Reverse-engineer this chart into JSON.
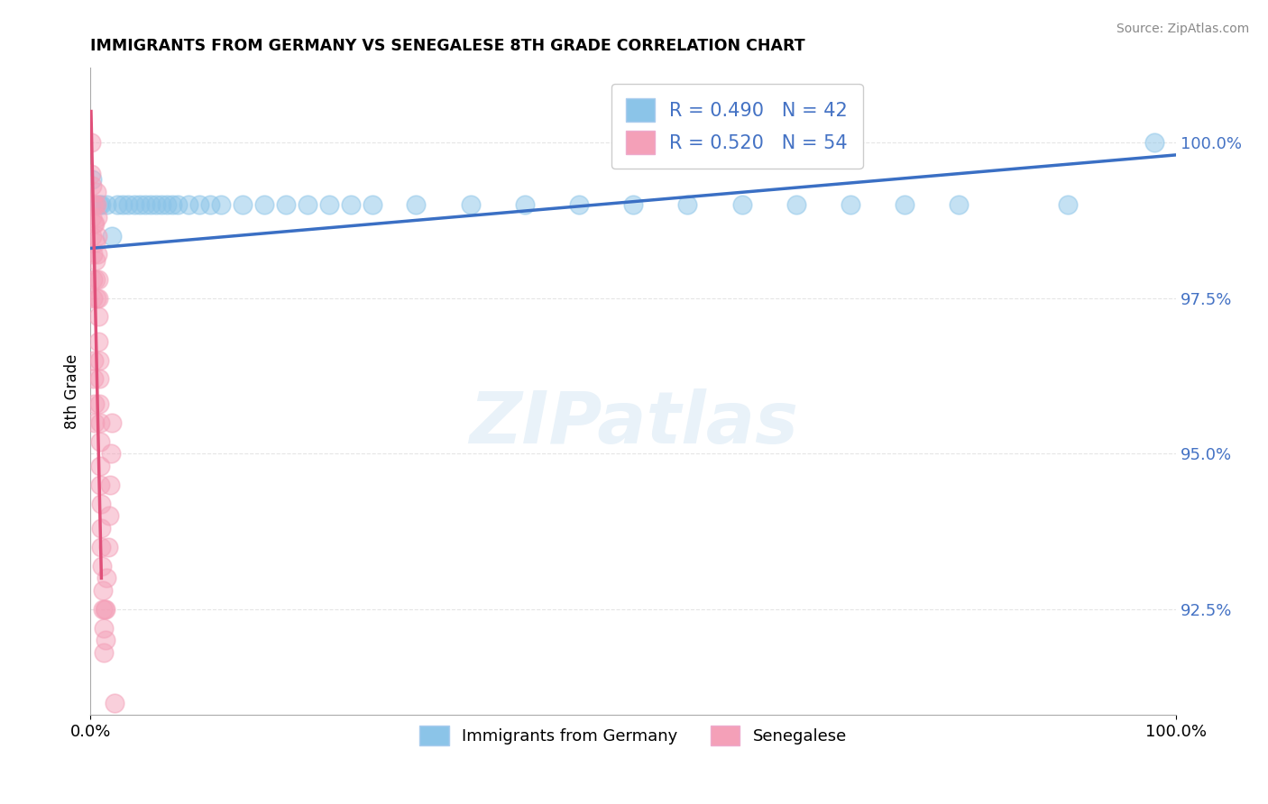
{
  "title": "IMMIGRANTS FROM GERMANY VS SENEGALESE 8TH GRADE CORRELATION CHART",
  "source": "Source: ZipAtlas.com",
  "xlabel": "",
  "ylabel": "8th Grade",
  "xlim": [
    0,
    100
  ],
  "ylim": [
    90.8,
    101.2
  ],
  "yticks": [
    92.5,
    95.0,
    97.5,
    100.0
  ],
  "ytick_labels": [
    "92.5%",
    "95.0%",
    "97.5%",
    "100.0%"
  ],
  "xticks": [
    0,
    100
  ],
  "xtick_labels": [
    "0.0%",
    "100.0%"
  ],
  "blue_R": 0.49,
  "blue_N": 42,
  "pink_R": 0.52,
  "pink_N": 54,
  "blue_color": "#8BC4E8",
  "pink_color": "#F4A0B8",
  "blue_line_color": "#3A6FC4",
  "pink_line_color": "#E0507A",
  "legend_label_blue": "Immigrants from Germany",
  "legend_label_pink": "Senegalese",
  "blue_x": [
    0.1,
    0.5,
    0.8,
    1.0,
    1.5,
    2.0,
    2.5,
    3.0,
    3.5,
    4.0,
    4.5,
    5.0,
    5.5,
    6.0,
    6.5,
    7.0,
    7.5,
    8.0,
    9.0,
    10.0,
    11.0,
    12.0,
    14.0,
    16.0,
    18.0,
    20.0,
    22.0,
    24.0,
    26.0,
    30.0,
    35.0,
    40.0,
    45.0,
    50.0,
    55.0,
    60.0,
    65.0,
    70.0,
    75.0,
    80.0,
    90.0,
    98.0
  ],
  "blue_y": [
    99.4,
    99.0,
    99.0,
    99.0,
    99.0,
    98.5,
    99.0,
    99.0,
    99.0,
    99.0,
    99.0,
    99.0,
    99.0,
    99.0,
    99.0,
    99.0,
    99.0,
    99.0,
    99.0,
    99.0,
    99.0,
    99.0,
    99.0,
    99.0,
    99.0,
    99.0,
    99.0,
    99.0,
    99.0,
    99.0,
    99.0,
    99.0,
    99.0,
    99.0,
    99.0,
    99.0,
    99.0,
    99.0,
    99.0,
    99.0,
    99.0,
    100.0
  ],
  "pink_x": [
    0.05,
    0.08,
    0.1,
    0.12,
    0.15,
    0.18,
    0.2,
    0.22,
    0.25,
    0.28,
    0.3,
    0.32,
    0.35,
    0.38,
    0.4,
    0.42,
    0.45,
    0.48,
    0.5,
    0.52,
    0.55,
    0.58,
    0.6,
    0.62,
    0.65,
    0.68,
    0.7,
    0.72,
    0.75,
    0.78,
    0.8,
    0.82,
    0.85,
    0.88,
    0.9,
    0.92,
    0.95,
    0.98,
    1.0,
    1.05,
    1.1,
    1.15,
    1.2,
    1.25,
    1.3,
    1.35,
    1.4,
    1.5,
    1.6,
    1.7,
    1.8,
    1.9,
    2.0,
    2.2
  ],
  "pink_y": [
    100.0,
    99.5,
    99.3,
    98.8,
    98.5,
    98.2,
    97.8,
    97.5,
    99.0,
    98.7,
    96.5,
    96.2,
    95.8,
    95.5,
    99.0,
    98.7,
    98.4,
    98.1,
    97.8,
    97.5,
    99.2,
    99.0,
    98.8,
    98.5,
    98.2,
    97.8,
    97.5,
    97.2,
    96.8,
    96.5,
    96.2,
    95.8,
    95.5,
    95.2,
    94.8,
    94.5,
    94.2,
    93.8,
    93.5,
    93.2,
    92.8,
    92.5,
    92.2,
    91.8,
    92.5,
    92.0,
    92.5,
    93.0,
    93.5,
    94.0,
    94.5,
    95.0,
    95.5,
    91.0
  ],
  "blue_line_x0": 0,
  "blue_line_y0": 98.3,
  "blue_line_x1": 100,
  "blue_line_y1": 99.8,
  "pink_line_x0": 0.05,
  "pink_line_y0": 100.5,
  "pink_line_x1": 1.0,
  "pink_line_y1": 93.0
}
